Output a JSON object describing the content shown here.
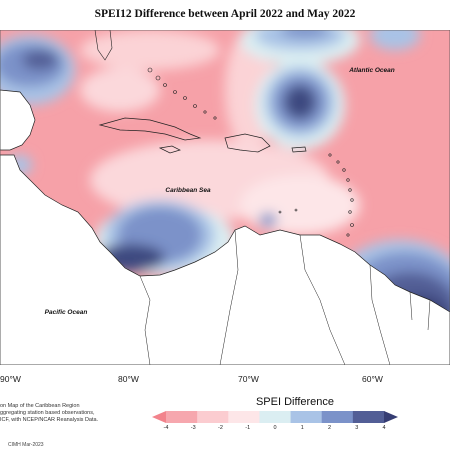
{
  "title": "SPEI12 Difference between April 2022 and May 2022",
  "map_labels": {
    "atlantic": "Atlantic Ocean",
    "caribbean": "Caribbean Sea",
    "pacific": "Pacific Ocean"
  },
  "lon_labels": [
    "90°W",
    "80°W",
    "70°W",
    "60°W"
  ],
  "caption": {
    "line1": "on Map of the Caribbean Region",
    "line2": "ggregating station based observations,",
    "line3": "ICF, with NCEP/NCAR Reanalysis Data."
  },
  "credit": "CIMH Mar-2023",
  "legend": {
    "title": "SPEI Difference",
    "ticks": [
      "-4",
      "-3",
      "-2",
      "-1",
      "0",
      "1",
      "2",
      "3",
      "4"
    ],
    "colors": [
      "#f2838c",
      "#f6a7ae",
      "#fbccd0",
      "#fde6e8",
      "#dbeef2",
      "#a9c3e6",
      "#7b92c9",
      "#525e96",
      "#363d73"
    ]
  }
}
